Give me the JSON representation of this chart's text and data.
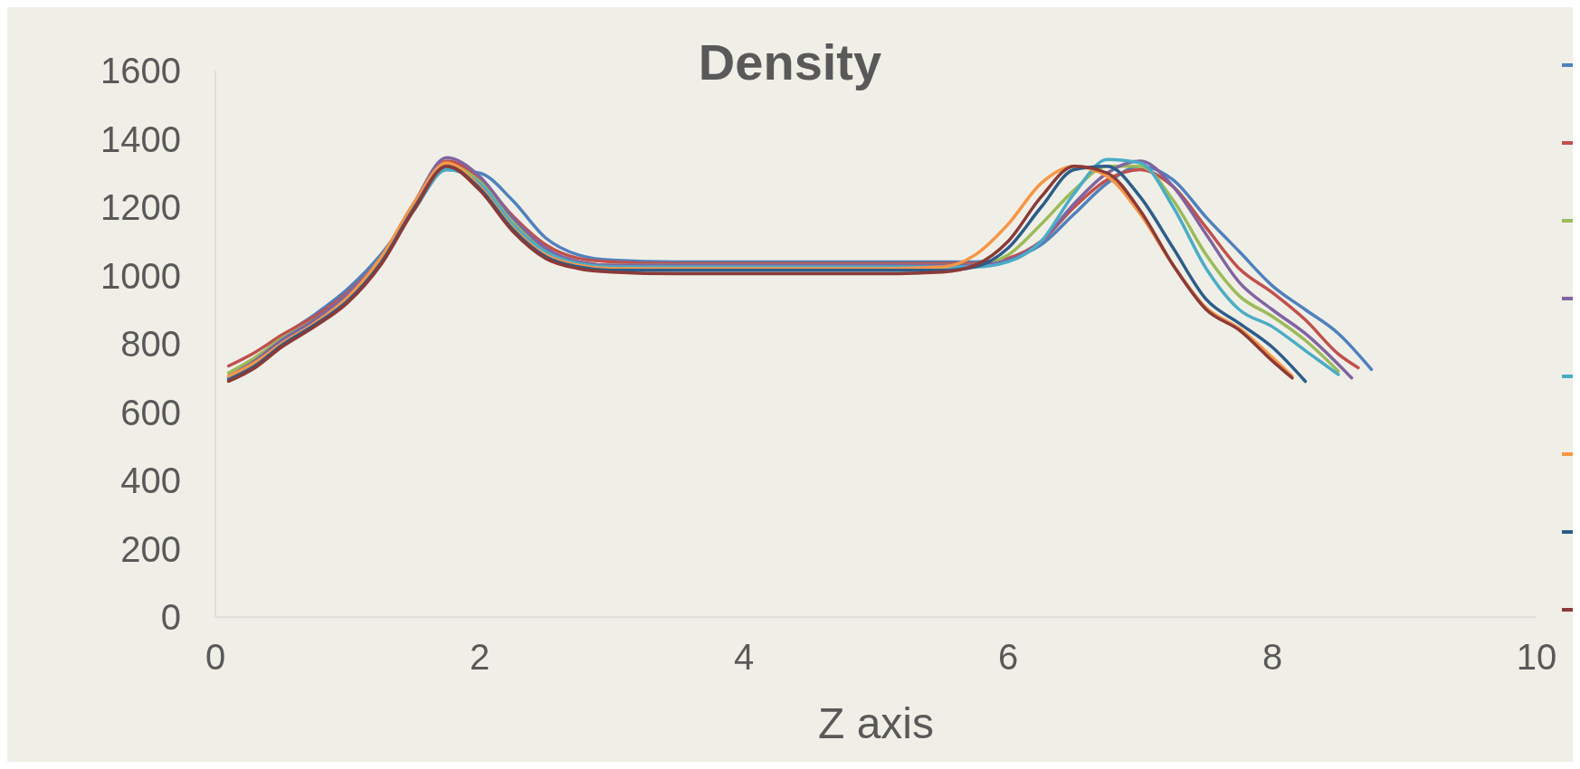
{
  "chart_data": {
    "type": "line",
    "title": "Density",
    "xlabel": "Z axis",
    "xlim": [
      0,
      10
    ],
    "xticks": [
      0,
      2,
      4,
      6,
      8,
      10
    ],
    "ylim": [
      0,
      1600
    ],
    "yticks": [
      0,
      200,
      400,
      600,
      800,
      1000,
      1200,
      1400,
      1600
    ],
    "grid": false,
    "marker": "none",
    "line_style": "solid",
    "series": [
      {
        "color": "#4f81bd",
        "x": [
          0.1,
          0.3,
          0.5,
          0.75,
          1,
          1.25,
          1.5,
          1.75,
          2,
          2.25,
          2.5,
          2.75,
          3,
          3.5,
          4,
          4.5,
          5,
          5.5,
          5.75,
          6,
          6.25,
          6.5,
          6.75,
          7,
          7.25,
          7.5,
          7.75,
          8,
          8.25,
          8.5,
          8.75
        ],
        "values": [
          700,
          755,
          820,
          885,
          960,
          1060,
          1190,
          1310,
          1300,
          1220,
          1110,
          1060,
          1045,
          1040,
          1040,
          1040,
          1040,
          1040,
          1040,
          1050,
          1090,
          1180,
          1270,
          1320,
          1280,
          1170,
          1070,
          970,
          900,
          830,
          725
        ]
      },
      {
        "color": "#c0504d",
        "x": [
          0.1,
          0.3,
          0.5,
          0.75,
          1,
          1.25,
          1.5,
          1.75,
          2,
          2.25,
          2.5,
          2.75,
          3,
          3.5,
          4,
          4.5,
          5,
          5.5,
          5.75,
          6,
          6.25,
          6.5,
          6.75,
          7,
          7.25,
          7.5,
          7.75,
          8,
          8.25,
          8.5,
          8.65
        ],
        "values": [
          735,
          775,
          825,
          880,
          950,
          1050,
          1200,
          1335,
          1285,
          1175,
          1090,
          1050,
          1040,
          1035,
          1035,
          1035,
          1035,
          1035,
          1035,
          1050,
          1100,
          1200,
          1280,
          1310,
          1260,
          1140,
          1020,
          950,
          870,
          770,
          730
        ]
      },
      {
        "color": "#9bbb59",
        "x": [
          0.1,
          0.3,
          0.5,
          0.75,
          1,
          1.25,
          1.5,
          1.75,
          2,
          2.25,
          2.5,
          2.75,
          3,
          3.5,
          4,
          4.5,
          5,
          5.5,
          5.75,
          6,
          6.25,
          6.5,
          6.75,
          7,
          7.25,
          7.5,
          7.75,
          8,
          8.25,
          8.5
        ],
        "values": [
          715,
          760,
          815,
          870,
          945,
          1050,
          1205,
          1325,
          1275,
          1160,
          1075,
          1040,
          1030,
          1030,
          1030,
          1030,
          1030,
          1030,
          1030,
          1060,
          1150,
          1250,
          1320,
          1320,
          1220,
          1060,
          940,
          880,
          810,
          720
        ]
      },
      {
        "color": "#8064a2",
        "x": [
          0.1,
          0.3,
          0.5,
          0.75,
          1,
          1.25,
          1.5,
          1.75,
          2,
          2.25,
          2.5,
          2.75,
          3,
          3.5,
          4,
          4.5,
          5,
          5.5,
          5.75,
          6,
          6.25,
          6.5,
          6.75,
          7,
          7.25,
          7.5,
          7.75,
          8,
          8.25,
          8.6
        ],
        "values": [
          705,
          750,
          810,
          870,
          945,
          1050,
          1210,
          1345,
          1290,
          1170,
          1080,
          1040,
          1030,
          1030,
          1030,
          1030,
          1030,
          1030,
          1030,
          1045,
          1100,
          1210,
          1300,
          1335,
          1260,
          1120,
          980,
          900,
          830,
          700
        ]
      },
      {
        "color": "#4bacc6",
        "x": [
          0.1,
          0.3,
          0.5,
          0.75,
          1,
          1.25,
          1.5,
          1.75,
          2,
          2.25,
          2.5,
          2.75,
          3,
          3.5,
          4,
          4.5,
          5,
          5.5,
          5.75,
          6,
          6.25,
          6.5,
          6.75,
          7,
          7.25,
          7.5,
          7.75,
          8,
          8.25,
          8.5
        ],
        "values": [
          700,
          740,
          800,
          860,
          935,
          1045,
          1190,
          1310,
          1270,
          1150,
          1070,
          1035,
          1025,
          1025,
          1025,
          1025,
          1025,
          1025,
          1025,
          1040,
          1100,
          1240,
          1340,
          1330,
          1200,
          1020,
          900,
          850,
          780,
          710
        ]
      },
      {
        "color": "#f79646",
        "x": [
          0.1,
          0.3,
          0.5,
          0.75,
          1,
          1.25,
          1.5,
          1.75,
          2,
          2.25,
          2.5,
          2.75,
          3,
          3.5,
          4,
          4.5,
          5,
          5.5,
          5.75,
          6,
          6.25,
          6.5,
          6.75,
          7,
          7.25,
          7.5,
          7.75,
          8,
          8.15
        ],
        "values": [
          705,
          745,
          800,
          860,
          935,
          1050,
          1210,
          1330,
          1260,
          1140,
          1060,
          1030,
          1020,
          1020,
          1020,
          1020,
          1020,
          1025,
          1060,
          1150,
          1270,
          1320,
          1290,
          1180,
          1030,
          905,
          845,
          760,
          705
        ]
      },
      {
        "color": "#2c5d8a",
        "x": [
          0.1,
          0.3,
          0.5,
          0.75,
          1,
          1.25,
          1.5,
          1.75,
          2,
          2.25,
          2.5,
          2.75,
          3,
          3.5,
          4,
          4.5,
          5,
          5.5,
          5.75,
          6,
          6.25,
          6.5,
          6.75,
          7,
          7.25,
          7.5,
          7.75,
          8,
          8.25
        ],
        "values": [
          695,
          735,
          795,
          855,
          925,
          1035,
          1195,
          1320,
          1255,
          1135,
          1055,
          1025,
          1015,
          1015,
          1015,
          1015,
          1015,
          1015,
          1025,
          1080,
          1200,
          1310,
          1320,
          1230,
          1080,
          930,
          860,
          790,
          690
        ]
      },
      {
        "color": "#8b3a38",
        "x": [
          0.1,
          0.3,
          0.5,
          0.75,
          1,
          1.25,
          1.5,
          1.75,
          2,
          2.25,
          2.5,
          2.75,
          3,
          3.5,
          4,
          4.5,
          5,
          5.5,
          5.75,
          6,
          6.25,
          6.5,
          6.75,
          7,
          7.25,
          7.5,
          7.75,
          8,
          8.15
        ],
        "values": [
          690,
          730,
          790,
          850,
          920,
          1030,
          1190,
          1320,
          1250,
          1130,
          1050,
          1020,
          1010,
          1005,
          1005,
          1005,
          1005,
          1010,
          1030,
          1100,
          1230,
          1320,
          1300,
          1190,
          1030,
          900,
          840,
          750,
          700
        ]
      }
    ]
  }
}
